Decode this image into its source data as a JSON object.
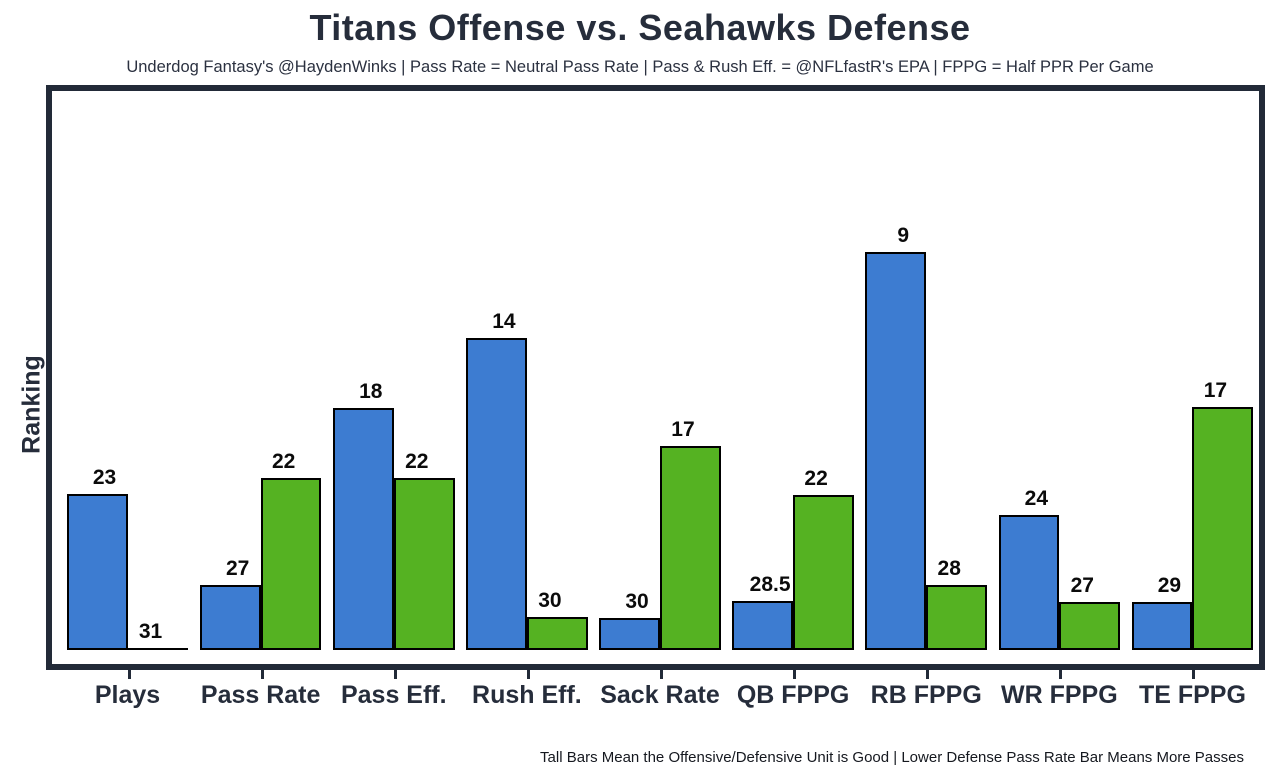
{
  "title": "Titans Offense vs. Seahawks Defense",
  "subtitle": "Underdog Fantasy's @HaydenWinks | Pass Rate = Neutral Pass Rate | Pass & Rush Eff. = @NFLfastR's EPA | FPPG = Half PPR Per Game",
  "y_axis_label": "Ranking",
  "footnote": "Tall Bars Mean the Offensive/Defensive Unit is Good | Lower Defense Pass Rate Bar Means More Passes",
  "colors": {
    "offense_blue": "#3d7cd1",
    "defense_green": "#55b222",
    "bar_outline": "#000000",
    "frame": "#222a38",
    "text_dark": "#262d3b"
  },
  "chart_data": {
    "type": "bar",
    "title": "Titans Offense vs. Seahawks Defense",
    "xlabel": "",
    "ylabel": "Ranking",
    "legend_position": "none",
    "grid": false,
    "categories": [
      "Plays",
      "Pass Rate",
      "Pass Eff.",
      "Rush Eff.",
      "Sack Rate",
      "QB FPPG",
      "RB FPPG",
      "WR FPPG",
      "TE FPPG"
    ],
    "series": [
      {
        "name": "Titans Offense",
        "color": "#3d7cd1",
        "rank_labels": [
          "23",
          "27",
          "18",
          "14",
          "30",
          "28.5",
          "9",
          "24",
          "29"
        ],
        "bar_height_pct": [
          27.2,
          11.3,
          42.2,
          54.4,
          5.6,
          8.5,
          69.4,
          23.6,
          8.4
        ]
      },
      {
        "name": "Seahawks Defense",
        "color": "#55b222",
        "rank_labels": [
          "31",
          "22",
          "22",
          "30",
          "17",
          "22",
          "28",
          "27",
          "17"
        ],
        "bar_height_pct": [
          0,
          30.0,
          30.0,
          5.8,
          35.6,
          27.0,
          11.3,
          8.4,
          42.4
        ]
      }
    ]
  }
}
